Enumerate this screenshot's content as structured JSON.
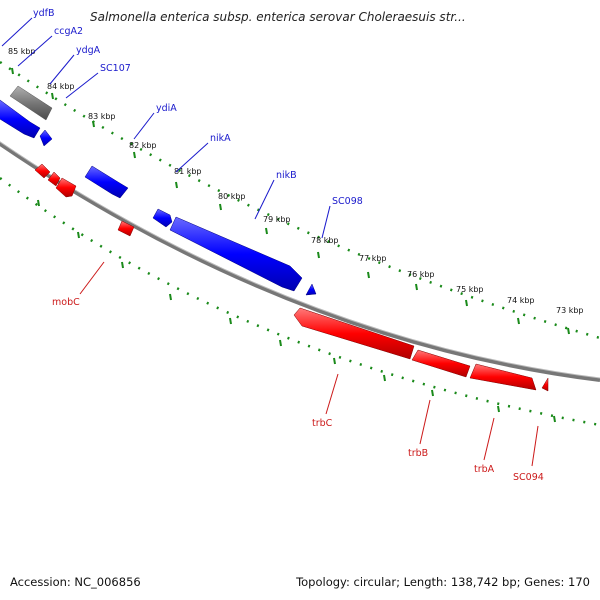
{
  "header": {
    "title": "Salmonella enterica subsp. enterica serovar Choleraesuis str..."
  },
  "footer": {
    "accession": "Accession: NC_006856",
    "summary": "Topology: circular; Length: 138,742 bp; Genes: 170"
  },
  "colors": {
    "forward_strand": "#0000ff",
    "reverse_strand": "#ff0000",
    "other_feature": "#777777",
    "backbone": "#888888",
    "tick": "#1a8a1a",
    "forward_label": "#1a1acc",
    "reverse_label": "#cc1a1a"
  },
  "ruler": {
    "ticks": [
      {
        "label": "85 kbp",
        "pos": 85
      },
      {
        "label": "84 kbp",
        "pos": 84
      },
      {
        "label": "83 kbp",
        "pos": 83
      },
      {
        "label": "82 kbp",
        "pos": 82
      },
      {
        "label": "81 kbp",
        "pos": 81
      },
      {
        "label": "80 kbp",
        "pos": 80
      },
      {
        "label": "79 kbp",
        "pos": 79
      },
      {
        "label": "78 kbp",
        "pos": 78
      },
      {
        "label": "77 kbp",
        "pos": 77
      },
      {
        "label": "76 kbp",
        "pos": 76
      },
      {
        "label": "75 kbp",
        "pos": 75
      },
      {
        "label": "74 kbp",
        "pos": 74
      },
      {
        "label": "73 kbp",
        "pos": 73
      }
    ]
  },
  "forward_labels": [
    "ydfB",
    "ccgA2",
    "ydgA",
    "SC107",
    "ydiA",
    "nikA",
    "nikB",
    "SC098"
  ],
  "reverse_labels": [
    "mobC",
    "trbC",
    "trbB",
    "trbA",
    "SC094"
  ]
}
